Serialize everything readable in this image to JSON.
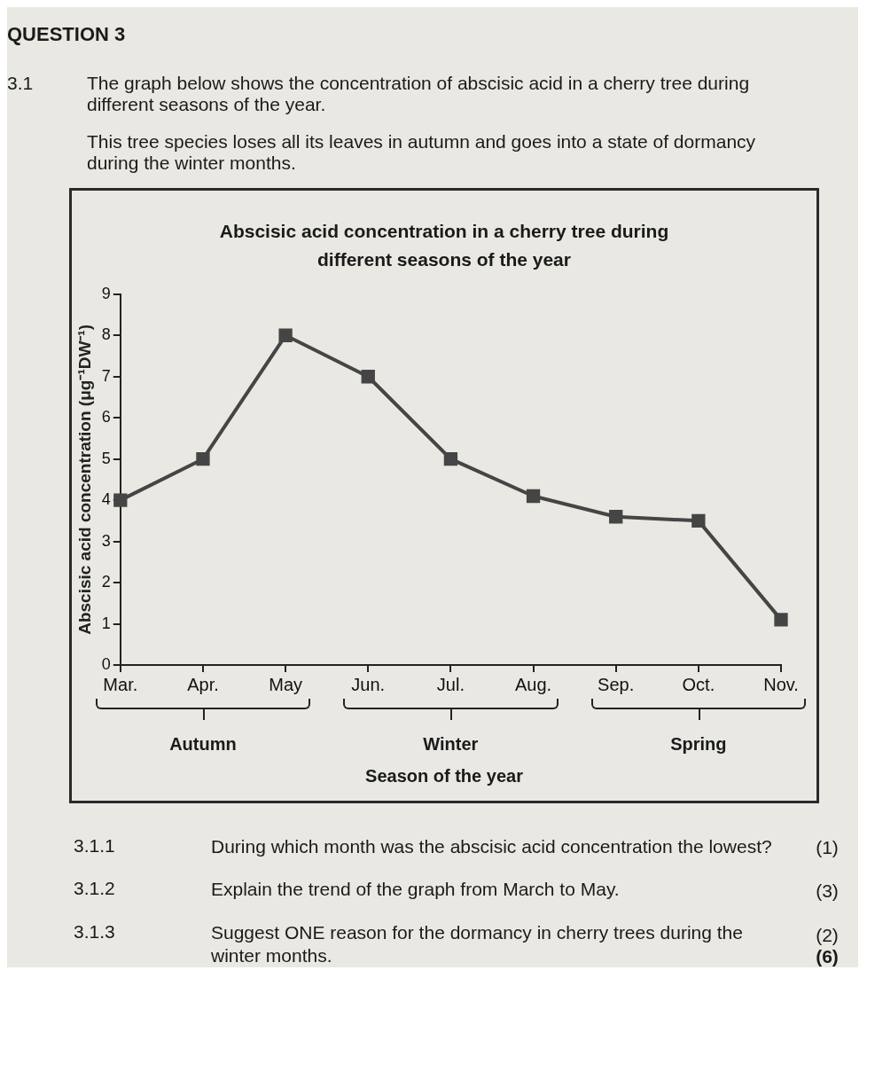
{
  "chart_data": {
    "type": "line",
    "title": "Abscisic acid concentration in a cherry tree during different seasons of the year",
    "xlabel": "Season of the year",
    "ylabel": "Abscisic acid concentration (μg⁻¹DW⁻¹)",
    "categories": [
      "Mar.",
      "Apr.",
      "May",
      "Jun.",
      "Jul.",
      "Aug.",
      "Sep.",
      "Oct.",
      "Nov."
    ],
    "series": [
      {
        "color": "#454545",
        "values": [
          4,
          5,
          8,
          7,
          5,
          4.1,
          3.6,
          3.5,
          1.1
        ]
      }
    ],
    "ylim": [
      0,
      9
    ],
    "yticks": [
      0,
      1,
      2,
      3,
      4,
      5,
      6,
      7,
      8,
      9
    ],
    "grid": false,
    "legend": false,
    "marker": "square",
    "line_style": "solid",
    "annotations": [
      "QUESTION 3",
      "3.1",
      "The graph below shows the concentration of abscisic acid in a cherry tree during different seasons of the year.",
      "This tree species loses all its leaves in autumn and goes into a state of dormancy during the winter months.",
      "Autumn",
      "Winter",
      "Spring",
      "3.1.1",
      "During which month was the abscisic acid concentration the lowest?",
      "(1)",
      "3.1.2",
      "Explain the trend of the graph from March to May.",
      "(3)",
      "3.1.3",
      "Suggest ONE reason for the dormancy in cherry trees during the winter months.",
      "(2)",
      "(6)"
    ]
  }
}
